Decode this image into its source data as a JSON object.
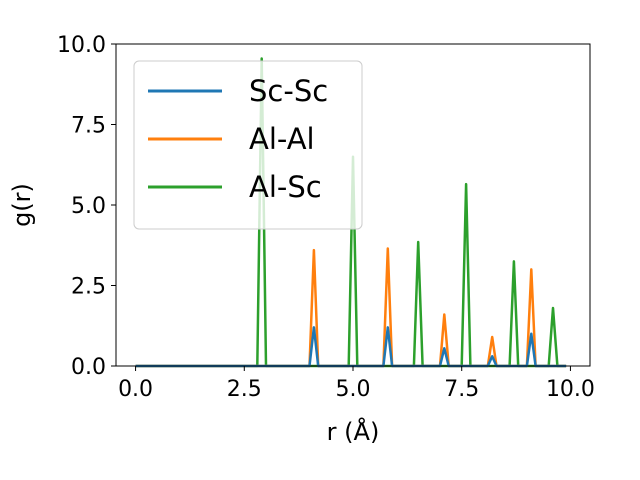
{
  "chart_data": {
    "type": "line",
    "xlabel": "r (Å)",
    "ylabel": "g(r)",
    "xlim": [
      -0.45,
      10.45
    ],
    "ylim": [
      0,
      10.0
    ],
    "xticks": [
      "0.0",
      "2.5",
      "5.0",
      "7.5",
      "10.0"
    ],
    "yticks": [
      "0.0",
      "2.5",
      "5.0",
      "7.5",
      "10.0"
    ],
    "grid": false,
    "legend_position": "upper-left",
    "series": [
      {
        "name": "Sc-Sc",
        "color": "#1f77b4",
        "peaks": [
          [
            4.1,
            1.2
          ],
          [
            5.8,
            1.2
          ],
          [
            7.1,
            0.55
          ],
          [
            8.2,
            0.3
          ],
          [
            9.1,
            1.0
          ]
        ]
      },
      {
        "name": "Al-Al",
        "color": "#ff7f0e",
        "peaks": [
          [
            4.1,
            3.6
          ],
          [
            5.8,
            3.65
          ],
          [
            7.1,
            1.6
          ],
          [
            8.2,
            0.9
          ],
          [
            9.1,
            3.0
          ]
        ]
      },
      {
        "name": "Al-Sc",
        "color": "#2ca02c",
        "peaks": [
          [
            2.9,
            9.55
          ],
          [
            5.0,
            6.5
          ],
          [
            6.5,
            3.85
          ],
          [
            7.6,
            5.65
          ],
          [
            8.7,
            3.25
          ],
          [
            9.6,
            1.8
          ]
        ]
      }
    ]
  }
}
